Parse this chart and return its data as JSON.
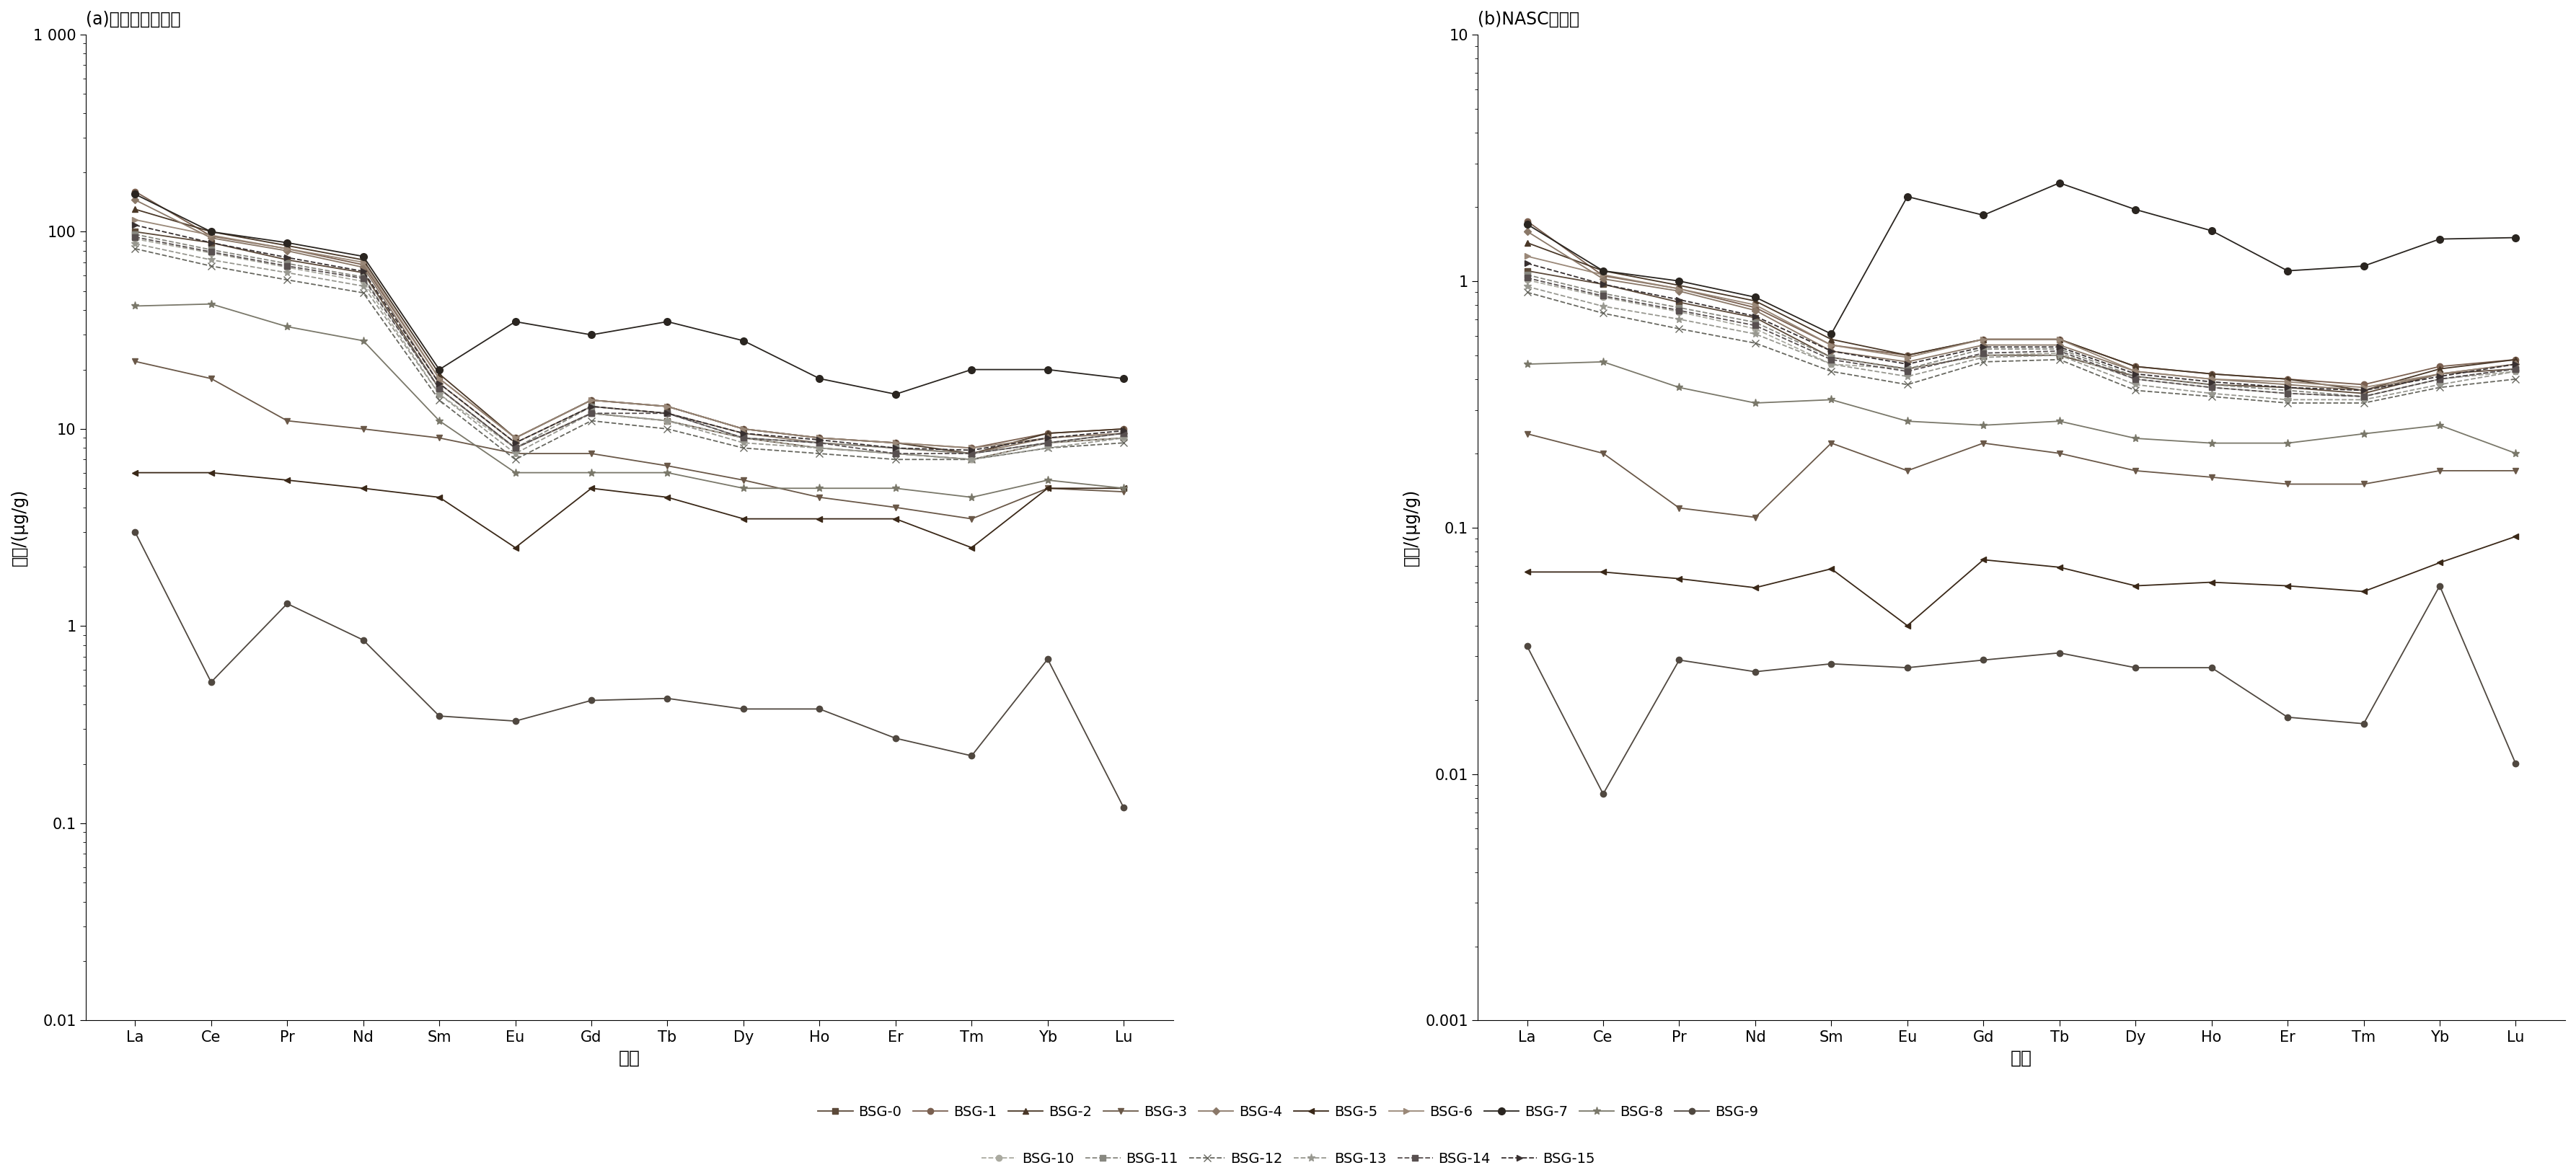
{
  "elements": [
    "La",
    "Ce",
    "Pr",
    "Nd",
    "Sm",
    "Eu",
    "Gd",
    "Tb",
    "Dy",
    "Ho",
    "Er",
    "Tm",
    "Yb",
    "Lu"
  ],
  "title_a": "(a)球粒陨石标准化",
  "title_b": "(b)NASC标准化",
  "xlabel": "元素",
  "ylabel": "丰度/(μg/g)",
  "panel_a_ylim": [
    0.01,
    1000
  ],
  "panel_b_ylim": [
    0.001,
    10
  ],
  "series": {
    "BSG-0": {
      "marker": "s",
      "color": "#5c4a3a",
      "linestyle": "-",
      "a": [
        100,
        88,
        72,
        62,
        16,
        8.0,
        12,
        11,
        9.0,
        8.0,
        7.5,
        7.0,
        8.5,
        9.0
      ],
      "b": [
        1.1,
        0.97,
        0.82,
        0.71,
        0.49,
        0.44,
        0.5,
        0.5,
        0.41,
        0.38,
        0.37,
        0.35,
        0.42,
        0.44
      ]
    },
    "BSG-1": {
      "marker": "o",
      "color": "#7a6050",
      "linestyle": "-",
      "a": [
        160,
        95,
        82,
        68,
        18,
        9.0,
        14,
        13,
        10,
        9.0,
        8.5,
        8.0,
        9.5,
        10
      ],
      "b": [
        1.75,
        1.05,
        0.93,
        0.78,
        0.55,
        0.5,
        0.58,
        0.58,
        0.45,
        0.42,
        0.4,
        0.38,
        0.45,
        0.48
      ]
    },
    "BSG-2": {
      "marker": "^",
      "color": "#4a3828",
      "linestyle": "-",
      "a": [
        130,
        100,
        85,
        72,
        19,
        9.0,
        14,
        13,
        10,
        9.0,
        8.5,
        7.5,
        9.5,
        10
      ],
      "b": [
        1.43,
        1.1,
        0.96,
        0.83,
        0.58,
        0.5,
        0.58,
        0.58,
        0.45,
        0.42,
        0.4,
        0.36,
        0.44,
        0.48
      ]
    },
    "BSG-3": {
      "marker": "v",
      "color": "#6a5848",
      "linestyle": "-",
      "a": [
        22,
        18,
        11,
        10,
        9.0,
        7.5,
        7.5,
        6.5,
        5.5,
        4.5,
        4.0,
        3.5,
        5.0,
        4.8
      ],
      "b": [
        0.24,
        0.2,
        0.12,
        0.11,
        0.22,
        0.17,
        0.22,
        0.2,
        0.17,
        0.16,
        0.15,
        0.15,
        0.17,
        0.17
      ]
    },
    "BSG-4": {
      "marker": "D",
      "color": "#8a7868",
      "linestyle": "-",
      "a": [
        145,
        93,
        80,
        66,
        17,
        8.5,
        13,
        12,
        9.5,
        8.5,
        8.0,
        7.5,
        9.0,
        9.5
      ],
      "b": [
        1.59,
        1.02,
        0.91,
        0.76,
        0.52,
        0.47,
        0.55,
        0.55,
        0.43,
        0.4,
        0.38,
        0.36,
        0.42,
        0.46
      ]
    },
    "BSG-5": {
      "marker": "<",
      "color": "#3a2818",
      "linestyle": "-",
      "a": [
        6.0,
        6.0,
        5.5,
        5.0,
        4.5,
        2.5,
        5.0,
        4.5,
        3.5,
        3.5,
        3.5,
        2.5,
        5.0,
        5.0
      ],
      "b": [
        0.066,
        0.066,
        0.062,
        0.057,
        0.068,
        0.04,
        0.074,
        0.069,
        0.058,
        0.06,
        0.058,
        0.055,
        0.072,
        0.092
      ]
    },
    "BSG-6": {
      "marker": ">",
      "color": "#9a8878",
      "linestyle": "-",
      "a": [
        115,
        96,
        82,
        70,
        18,
        9.0,
        14,
        13,
        10,
        9.0,
        8.5,
        8.0,
        9.0,
        9.5
      ],
      "b": [
        1.26,
        1.06,
        0.93,
        0.8,
        0.55,
        0.49,
        0.58,
        0.58,
        0.43,
        0.4,
        0.39,
        0.37,
        0.42,
        0.46
      ]
    },
    "BSG-7": {
      "marker": "o",
      "color": "#2a2520",
      "linestyle": "-",
      "a": [
        155,
        100,
        88,
        75,
        20,
        35,
        30,
        35,
        28,
        18,
        15,
        20,
        20,
        18
      ],
      "b": [
        1.7,
        1.1,
        1.0,
        0.86,
        0.61,
        2.2,
        1.85,
        2.5,
        1.95,
        1.6,
        1.1,
        1.15,
        1.48,
        1.5
      ]
    },
    "BSG-8": {
      "marker": "*",
      "color": "#7a786a",
      "linestyle": "-",
      "a": [
        42,
        43,
        33,
        28,
        11,
        6.0,
        6.0,
        6.0,
        5.0,
        5.0,
        5.0,
        4.5,
        5.5,
        5.0
      ],
      "b": [
        0.46,
        0.47,
        0.37,
        0.32,
        0.33,
        0.27,
        0.26,
        0.27,
        0.23,
        0.22,
        0.22,
        0.24,
        0.26,
        0.2
      ]
    },
    "BSG-9": {
      "marker": "o",
      "color": "#504840",
      "linestyle": "-",
      "a": [
        3.0,
        0.52,
        1.3,
        0.85,
        0.35,
        0.33,
        0.42,
        0.43,
        0.38,
        0.38,
        0.27,
        0.22,
        0.68,
        0.12
      ],
      "b": [
        0.033,
        0.0083,
        0.029,
        0.026,
        0.028,
        0.027,
        0.029,
        0.031,
        0.027,
        0.027,
        0.017,
        0.016,
        0.058,
        0.011
      ]
    },
    "BSG-10": {
      "marker": "o",
      "color": "#aaaaa0",
      "linestyle": "--",
      "a": [
        92,
        78,
        66,
        56,
        15,
        8.0,
        12,
        11,
        9.0,
        8.0,
        7.5,
        7.0,
        8.5,
        9.0
      ],
      "b": [
        1.01,
        0.86,
        0.75,
        0.64,
        0.46,
        0.44,
        0.5,
        0.51,
        0.4,
        0.37,
        0.35,
        0.34,
        0.4,
        0.43
      ]
    },
    "BSG-11": {
      "marker": "s",
      "color": "#888880",
      "linestyle": "--",
      "a": [
        97,
        81,
        69,
        59,
        16,
        8.0,
        13,
        12,
        9.0,
        8.5,
        8.0,
        7.5,
        8.5,
        9.5
      ],
      "b": [
        1.06,
        0.89,
        0.78,
        0.68,
        0.49,
        0.44,
        0.53,
        0.53,
        0.41,
        0.38,
        0.36,
        0.34,
        0.4,
        0.44
      ]
    },
    "BSG-12": {
      "marker": "x",
      "color": "#686860",
      "linestyle": "--",
      "a": [
        82,
        67,
        57,
        49,
        14,
        7.0,
        11,
        10,
        8.0,
        7.5,
        7.0,
        7.0,
        8.0,
        8.5
      ],
      "b": [
        0.9,
        0.74,
        0.64,
        0.56,
        0.43,
        0.38,
        0.47,
        0.48,
        0.36,
        0.34,
        0.32,
        0.32,
        0.37,
        0.4
      ]
    },
    "BSG-13": {
      "marker": "*",
      "color": "#989890",
      "linestyle": "--",
      "a": [
        87,
        72,
        62,
        53,
        15,
        7.5,
        12,
        11,
        8.5,
        8.0,
        7.5,
        7.0,
        8.0,
        9.0
      ],
      "b": [
        0.95,
        0.79,
        0.7,
        0.61,
        0.46,
        0.41,
        0.49,
        0.5,
        0.38,
        0.35,
        0.33,
        0.33,
        0.38,
        0.43
      ]
    },
    "BSG-14": {
      "marker": "s",
      "color": "#585050",
      "linestyle": "--",
      "a": [
        94,
        79,
        67,
        58,
        16,
        8.0,
        12,
        12,
        9.0,
        8.5,
        7.5,
        7.5,
        8.5,
        9.5
      ],
      "b": [
        1.03,
        0.87,
        0.76,
        0.66,
        0.48,
        0.43,
        0.51,
        0.52,
        0.4,
        0.37,
        0.35,
        0.34,
        0.4,
        0.44
      ]
    },
    "BSG-15": {
      "marker": ">",
      "color": "#383030",
      "linestyle": "--",
      "a": [
        108,
        88,
        74,
        63,
        17,
        8.5,
        13,
        12,
        9.5,
        8.8,
        8.0,
        7.8,
        9.0,
        9.8
      ],
      "b": [
        1.18,
        0.97,
        0.84,
        0.72,
        0.52,
        0.46,
        0.54,
        0.54,
        0.42,
        0.39,
        0.37,
        0.36,
        0.41,
        0.46
      ]
    }
  },
  "legend_order": [
    "BSG-0",
    "BSG-1",
    "BSG-2",
    "BSG-3",
    "BSG-4",
    "BSG-5",
    "BSG-6",
    "BSG-7",
    "BSG-8",
    "BSG-9",
    "BSG-10",
    "BSG-11",
    "BSG-12",
    "BSG-13",
    "BSG-14",
    "BSG-15"
  ],
  "marker_sizes": {
    "BSG-0": 6,
    "BSG-1": 6,
    "BSG-2": 6,
    "BSG-3": 6,
    "BSG-4": 5,
    "BSG-5": 6,
    "BSG-6": 6,
    "BSG-7": 7,
    "BSG-8": 8,
    "BSG-9": 6,
    "BSG-10": 6,
    "BSG-11": 6,
    "BSG-12": 7,
    "BSG-13": 8,
    "BSG-14": 6,
    "BSG-15": 6
  }
}
